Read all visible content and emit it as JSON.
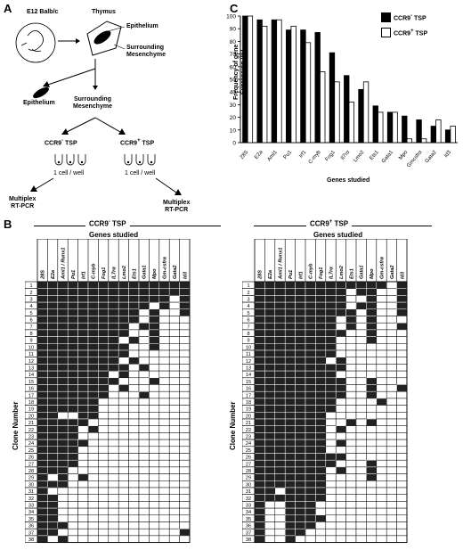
{
  "panel_labels": {
    "a": "A",
    "b": "B",
    "c": "C"
  },
  "panel_a": {
    "strain": "E12 Balb/c",
    "thymus": "Thymus",
    "epithelium_label": "Epithelium",
    "surrounding_label": "Surrounding\nMesenchyme",
    "epithelium_out": "Epithelium",
    "mesenchyme_out": "Surrounding\nMesenchyme",
    "ccr9_neg": "CCR9",
    "ccr9_pos": "CCR9",
    "neg_sign": "-",
    "pos_sign": "+",
    "tsp": "TSP",
    "one_cell_left": "1 cell / well",
    "one_cell_right": "1 cell / well",
    "multiplex_left": "Multiplex\nRT-PCR",
    "multiplex_right": "Multiplex\nRT-PCR"
  },
  "panel_b": {
    "left_title_main": "CCR9",
    "left_title_sign": "-",
    "left_title_tsp": "TSP",
    "right_title_main": "CCR9",
    "right_title_sign": "+",
    "right_title_tsp": "TSP",
    "genes_studied": "Genes studied",
    "clone_number": "Clone Number",
    "genes": [
      "28S",
      "E2a",
      "Aml1 / Runx1",
      "Pu1",
      "Irf1",
      "C-myb",
      "Fog1",
      "IL7rα",
      "Lmo2",
      "Ets1",
      "Gata1",
      "Mpo",
      "Gm-csfrα",
      "Gata2",
      "Id3"
    ],
    "clone_ids": [
      "1",
      "2",
      "3",
      "4",
      "5",
      "6",
      "7",
      "8",
      "9",
      "10",
      "11",
      "12",
      "13",
      "14",
      "15",
      "16",
      "17",
      "18",
      "19",
      "20",
      "21",
      "22",
      "23",
      "24",
      "25",
      "26",
      "27",
      "28",
      "29",
      "30",
      "31",
      "32",
      "33",
      "34",
      "35",
      "36",
      "37",
      "38"
    ],
    "left_matrix": [
      "111111111111111",
      "111111111111111",
      "111111111111101",
      "111111111110101",
      "111111111101001",
      "111111111101000",
      "111111111011000",
      "111111111001000",
      "111111110101000",
      "111111111001000",
      "111111111000000",
      "111111110100000",
      "111111111010000",
      "111111101000000",
      "111111110001000",
      "111111101000000",
      "111111100010000",
      "111111000000000",
      "111111000000000",
      "110011000000000",
      "111110000000000",
      "111101000000000",
      "111100000000000",
      "111110000000000",
      "111100000000000",
      "111100000000000",
      "111100000000000",
      "111000000000000",
      "101010000000000",
      "111000000000000",
      "100000000000000",
      "110000000000000",
      "110000000000000",
      "110000000000000",
      "110000000000000",
      "111000000000000",
      "110000000000001",
      "101000000000000"
    ],
    "right_matrix": [
      "111111111111101",
      "111111111011001",
      "111111111001001",
      "111111111011001",
      "111111111101001",
      "111111110101000",
      "111111110101001",
      "111111111001000",
      "111111110001000",
      "111111110000000",
      "111111110000000",
      "111111101000000",
      "111111111000000",
      "111111110000000",
      "111111111001000",
      "111111111001001",
      "111111111001000",
      "111111110000100",
      "111111110000000",
      "111111100000000",
      "111111100101000",
      "111111101000000",
      "111111100000000",
      "111111101000000",
      "111111100000000",
      "111111111000000",
      "111111110001000",
      "111111101001000",
      "111111100001000",
      "111111100000000",
      "110111100000000",
      "111111100000000",
      "100111000000000",
      "100111000000000",
      "100111100000000",
      "100111000000000",
      "100110000000000",
      "100100000000000"
    ]
  },
  "chart_data": {
    "type": "bar",
    "ylabel": "Frequency of gene\nExpression (%)",
    "xlabel": "Genes studied",
    "ylim": [
      0,
      100
    ],
    "yticks": [
      "0",
      "10",
      "20",
      "30",
      "40",
      "50",
      "60",
      "70",
      "80",
      "90",
      "100"
    ],
    "categories": [
      "28S",
      "E2a",
      "Aml1",
      "Pu1",
      "Irf1",
      "C-myb",
      "Fog1",
      "Il7rα",
      "Lmo2",
      "Ets1",
      "Gata1",
      "Mpo",
      "Gmcsfrα",
      "Gata2",
      "Id3"
    ],
    "series": [
      {
        "name": "CCR9 - TSP",
        "values": [
          100,
          97,
          97,
          89,
          89,
          87,
          71,
          53,
          42,
          29,
          24,
          21,
          18,
          13,
          10
        ],
        "color": "#000000"
      },
      {
        "name": "CCR9 + TSP",
        "values": [
          100,
          92,
          97,
          92,
          79,
          56,
          48,
          32,
          48,
          24,
          24,
          3,
          3,
          18,
          13
        ],
        "color": "#ffffff"
      }
    ],
    "legend": {
      "neg_main": "CCR9",
      "neg_sign": "-",
      "neg_tsp": "TSP",
      "pos_main": "CCR9",
      "pos_sign": "+",
      "pos_tsp": "TSP"
    }
  }
}
